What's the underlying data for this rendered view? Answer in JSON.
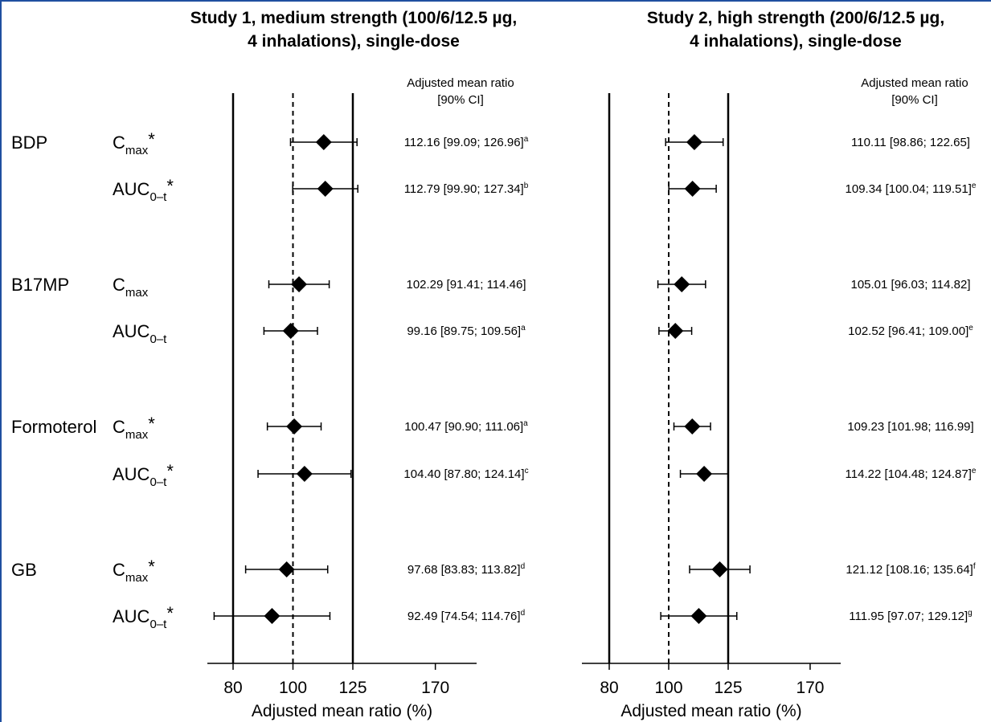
{
  "colors": {
    "frame": "#1f4fa0",
    "ink": "#000000",
    "background": "#ffffff"
  },
  "row_labels": [
    {
      "analyte": "BDP",
      "param_base": "C",
      "param_sub": "max",
      "param_mark": "*"
    },
    {
      "analyte": "",
      "param_base": "AUC",
      "param_sub": "0–t",
      "param_mark": "*"
    },
    {
      "analyte": "B17MP",
      "param_base": "C",
      "param_sub": "max",
      "param_mark": ""
    },
    {
      "analyte": "",
      "param_base": "AUC",
      "param_sub": "0–t",
      "param_mark": ""
    },
    {
      "analyte": "Formoterol",
      "param_base": "C",
      "param_sub": "max",
      "param_mark": "*"
    },
    {
      "analyte": "",
      "param_base": "AUC",
      "param_sub": "0–t",
      "param_mark": "*"
    },
    {
      "analyte": "GB",
      "param_base": "C",
      "param_sub": "max",
      "param_mark": "*"
    },
    {
      "analyte": "",
      "param_base": "AUC",
      "param_sub": "0–t",
      "param_mark": "*"
    }
  ],
  "chart_data": [
    {
      "type": "forest",
      "title_lines": [
        "Study 1, medium strength (100/6/12.5 µg,",
        "4 inhalations), single-dose"
      ],
      "ci_header_lines": [
        "Adjusted mean ratio",
        "[90% CI]"
      ],
      "xlabel": "Adjusted mean ratio (%)",
      "xscale": "log",
      "xlim": [
        70,
        170
      ],
      "xticks": [
        80,
        100,
        125,
        170
      ],
      "reference_line": 100,
      "bounds": [
        80,
        125
      ],
      "points": [
        {
          "estimate": 112.16,
          "lower": 99.09,
          "upper": 126.96,
          "label": "112.16 [99.09; 126.96]",
          "footnote": "a"
        },
        {
          "estimate": 112.79,
          "lower": 99.9,
          "upper": 127.34,
          "label": "112.79 [99.90; 127.34]",
          "footnote": "b"
        },
        {
          "estimate": 102.29,
          "lower": 91.41,
          "upper": 114.46,
          "label": "102.29 [91.41; 114.46]",
          "footnote": ""
        },
        {
          "estimate": 99.16,
          "lower": 89.75,
          "upper": 109.56,
          "label": "99.16 [89.75; 109.56]",
          "footnote": "a"
        },
        {
          "estimate": 100.47,
          "lower": 90.9,
          "upper": 111.06,
          "label": "100.47 [90.90; 111.06]",
          "footnote": "a"
        },
        {
          "estimate": 104.4,
          "lower": 87.8,
          "upper": 124.14,
          "label": "104.40 [87.80; 124.14]",
          "footnote": "c"
        },
        {
          "estimate": 97.68,
          "lower": 83.83,
          "upper": 113.82,
          "label": "97.68 [83.83; 113.82]",
          "footnote": "d"
        },
        {
          "estimate": 92.49,
          "lower": 74.54,
          "upper": 114.76,
          "label": "92.49 [74.54; 114.76]",
          "footnote": "d"
        }
      ]
    },
    {
      "type": "forest",
      "title_lines": [
        "Study 2, high strength (200/6/12.5 µg,",
        "4 inhalations), single-dose"
      ],
      "ci_header_lines": [
        "Adjusted mean ratio",
        "[90% CI]"
      ],
      "xlabel": "Adjusted mean ratio (%)",
      "xscale": "log",
      "xlim": [
        70,
        170
      ],
      "xticks": [
        80,
        100,
        125,
        170
      ],
      "reference_line": 100,
      "bounds": [
        80,
        125
      ],
      "points": [
        {
          "estimate": 110.11,
          "lower": 98.86,
          "upper": 122.65,
          "label": "110.11 [98.86; 122.65]",
          "footnote": ""
        },
        {
          "estimate": 109.34,
          "lower": 100.04,
          "upper": 119.51,
          "label": "109.34 [100.04; 119.51]",
          "footnote": "e"
        },
        {
          "estimate": 105.01,
          "lower": 96.03,
          "upper": 114.82,
          "label": "105.01 [96.03; 114.82]",
          "footnote": ""
        },
        {
          "estimate": 102.52,
          "lower": 96.41,
          "upper": 109.0,
          "label": "102.52 [96.41; 109.00]",
          "footnote": "e"
        },
        {
          "estimate": 109.23,
          "lower": 101.98,
          "upper": 116.99,
          "label": "109.23 [101.98; 116.99]",
          "footnote": ""
        },
        {
          "estimate": 114.22,
          "lower": 104.48,
          "upper": 124.87,
          "label": "114.22 [104.48; 124.87]",
          "footnote": "e"
        },
        {
          "estimate": 121.12,
          "lower": 108.16,
          "upper": 135.64,
          "label": "121.12 [108.16; 135.64]",
          "footnote": "f"
        },
        {
          "estimate": 111.95,
          "lower": 97.07,
          "upper": 129.12,
          "label": "111.95 [97.07; 129.12]",
          "footnote": "g"
        }
      ]
    }
  ]
}
